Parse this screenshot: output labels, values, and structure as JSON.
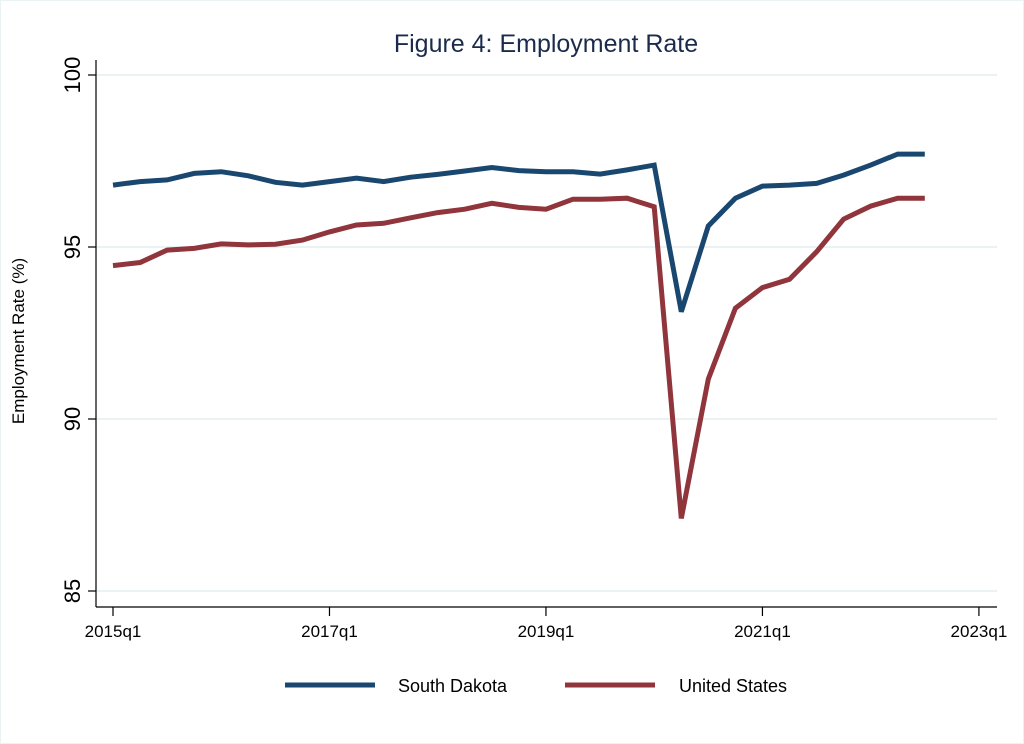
{
  "chart_data": {
    "type": "line",
    "title": "Figure 4: Employment Rate",
    "xlabel": "",
    "ylabel": "Employment Rate (%)",
    "ylim": [
      84.5,
      100
    ],
    "yticks": [
      85,
      90,
      95,
      100
    ],
    "ytick_labels": [
      "85",
      "90",
      "95",
      "100"
    ],
    "xticks": [
      "2015q1",
      "2017q1",
      "2019q1",
      "2021q1",
      "2023q1"
    ],
    "grid": true,
    "legend_position": "bottom",
    "x": [
      "2015q1",
      "2015q2",
      "2015q3",
      "2015q4",
      "2016q1",
      "2016q2",
      "2016q3",
      "2016q4",
      "2017q1",
      "2017q2",
      "2017q3",
      "2017q4",
      "2018q1",
      "2018q2",
      "2018q3",
      "2018q4",
      "2019q1",
      "2019q2",
      "2019q3",
      "2019q4",
      "2020q1",
      "2020q2",
      "2020q3",
      "2020q4",
      "2021q1",
      "2021q2",
      "2021q3",
      "2021q4",
      "2022q1",
      "2022q2",
      "2022q3"
    ],
    "series": [
      {
        "name": "South Dakota",
        "color": "#1a476f",
        "values": [
          96.8,
          96.9,
          96.95,
          97.14,
          97.19,
          97.07,
          96.88,
          96.8,
          96.9,
          97.0,
          96.9,
          97.03,
          97.11,
          97.21,
          97.31,
          97.22,
          97.19,
          97.19,
          97.12,
          97.24,
          97.38,
          93.12,
          95.61,
          96.42,
          96.77,
          96.8,
          96.85,
          97.09,
          97.38,
          97.7,
          97.7
        ]
      },
      {
        "name": "United States",
        "color": "#90353b",
        "values": [
          94.46,
          94.55,
          94.91,
          94.96,
          95.09,
          95.06,
          95.08,
          95.2,
          95.44,
          95.64,
          95.69,
          95.85,
          96.0,
          96.1,
          96.27,
          96.15,
          96.1,
          96.39,
          96.39,
          96.42,
          96.17,
          87.11,
          91.16,
          93.22,
          93.82,
          94.06,
          94.86,
          95.81,
          96.19,
          96.42,
          96.42
        ]
      }
    ]
  }
}
